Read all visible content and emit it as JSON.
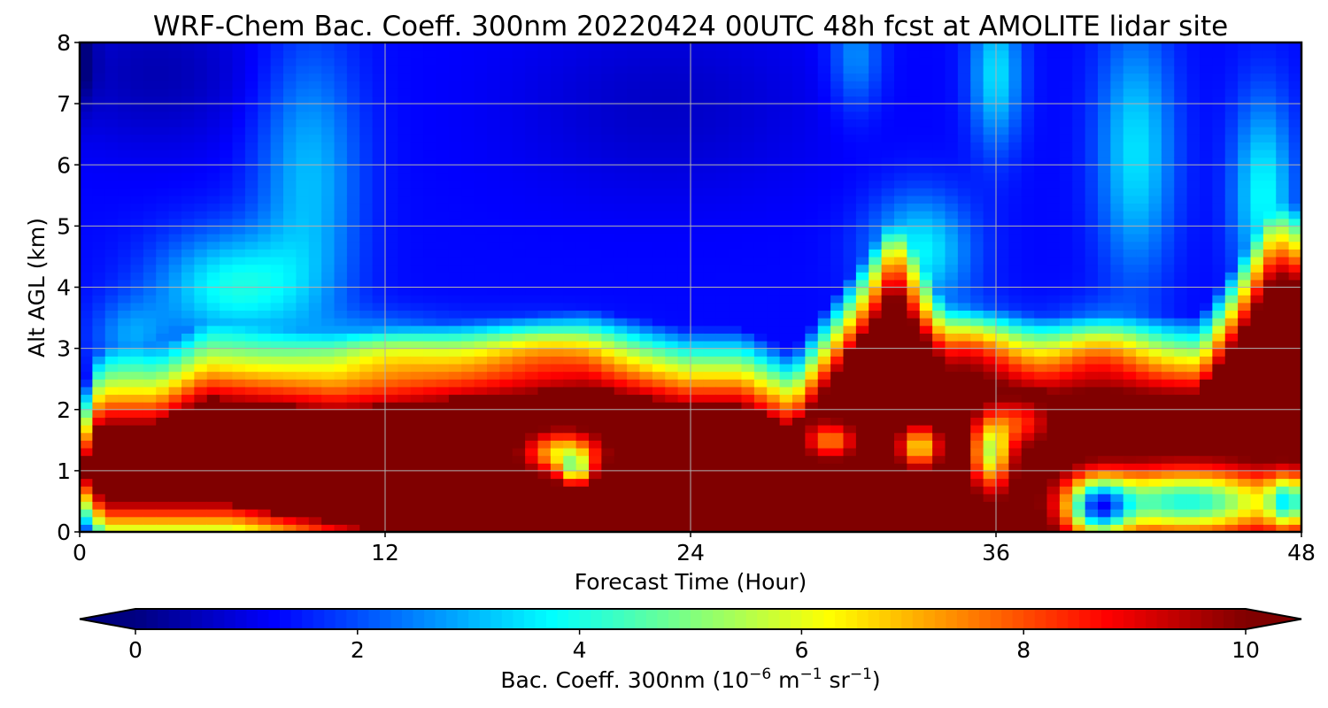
{
  "chart_data": {
    "type": "heatmap",
    "title": "WRF-Chem Bac. Coeff. 300nm  20220424 00UTC 48h fcst at AMOLITE lidar site",
    "xlabel": "Forecast Time (Hour)",
    "ylabel": "Alt AGL (km)",
    "xlim": [
      0,
      48
    ],
    "ylim": [
      0,
      8
    ],
    "x_ticks": [
      "0",
      "12",
      "24",
      "36",
      "48"
    ],
    "y_ticks": [
      "0",
      "1",
      "2",
      "3",
      "4",
      "5",
      "6",
      "7",
      "8"
    ],
    "grid": true,
    "colormap": "jet",
    "colorbar": {
      "orientation": "horizontal",
      "location": "bottom",
      "range": [
        0,
        10
      ],
      "extend": "both",
      "ticks": [
        "0",
        "2",
        "4",
        "6",
        "8",
        "10"
      ],
      "label_main": "Bac. Coeff. 300nm  (10",
      "label_exp1": "−6",
      "label_mid": " m",
      "label_exp2": "−1",
      "label_mid2": " sr",
      "label_exp3": "−1",
      "label_end": ")"
    },
    "x_hours": [
      0,
      0.5,
      1,
      2,
      3,
      4,
      5,
      6,
      8,
      10,
      12,
      14,
      16,
      17,
      18,
      19,
      20,
      21,
      22,
      23,
      24,
      25,
      26,
      27,
      28,
      29,
      30,
      31,
      32,
      33,
      34,
      35,
      36,
      37,
      38,
      39,
      40,
      41,
      42,
      43,
      44,
      45,
      46,
      47,
      48
    ],
    "y_km": [
      0,
      0.25,
      0.5,
      0.75,
      1,
      1.25,
      1.5,
      1.75,
      2,
      2.25,
      2.5,
      2.75,
      3,
      3.5,
      4,
      4.5,
      5,
      5.5,
      6,
      6.5,
      7,
      7.5,
      8
    ],
    "field_description": "Backscatter coefficient (10^-6 m^-1 sr^-1) by forecast hour and altitude; saturated (>=10) boundary-layer aerosol below ~2-2.5 km, elevated plume to ~4 km near hour 32, elevated layer up to ~6 km near hour 47, cleaner air (~1-2) aloft."
  }
}
